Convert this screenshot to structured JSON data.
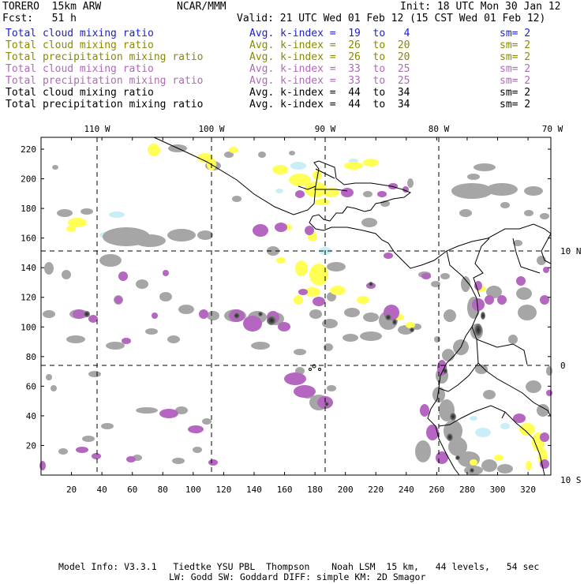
{
  "header": {
    "model": "TORERO  15km ARW",
    "center": "NCAR/MMM",
    "init": "Init: 18 UTC Mon 30 Jan 12",
    "fcst": "Fcst:   51 h",
    "valid": "Valid: 21 UTC Wed 01 Feb 12 (15 CST Wed 01 Feb 12)"
  },
  "legend": [
    {
      "field": "Total cloud mixing ratio",
      "index": "Avg. k-index =  19  to   4",
      "sm": "sm= 2",
      "color": "#1f22c8"
    },
    {
      "field": "Total cloud mixing ratio",
      "index": "Avg. k-index =  26  to  20",
      "sm": "sm= 2",
      "color": "#8a8a00"
    },
    {
      "field": "Total precipitation mixing ratio",
      "index": "Avg. k-index =  26  to  20",
      "sm": "sm= 2",
      "color": "#8a8a00"
    },
    {
      "field": "Total cloud mixing ratio",
      "index": "Avg. k-index =  33  to  25",
      "sm": "sm= 2",
      "color": "#b06ab8"
    },
    {
      "field": "Total precipitation mixing ratio",
      "index": "Avg. k-index =  33  to  25",
      "sm": "sm= 2",
      "color": "#b06ab8"
    },
    {
      "field": "Total cloud mixing ratio",
      "index": "Avg. k-index =  44  to  34",
      "sm": "sm= 2",
      "color": "#000000"
    },
    {
      "field": "Total precipitation mixing ratio",
      "index": "Avg. k-index =  44  to  34",
      "sm": "sm= 2",
      "color": "#000000"
    }
  ],
  "map": {
    "lon_labels": [
      "110 W",
      "100 W",
      "90 W",
      "80 W",
      "70 W"
    ],
    "lat_labels": [
      "10 N",
      "0",
      "10 S"
    ],
    "y_ticks": [
      "20",
      "40",
      "60",
      "80",
      "100",
      "120",
      "140",
      "160",
      "180",
      "200",
      "220"
    ],
    "x_ticks": [
      "20",
      "40",
      "60",
      "80",
      "100",
      "120",
      "140",
      "160",
      "180",
      "200",
      "220",
      "240",
      "260",
      "280",
      "300",
      "320"
    ],
    "colors": {
      "gray": "#a6a6a6",
      "dark_gray": "#555555",
      "yellow": "#ffff55",
      "purple": "#b466c0",
      "light_blue": "#c8eef8"
    }
  },
  "footer": {
    "line1": "Model Info: V3.3.1   Tiedtke YSU PBL  Thompson    Noah LSM  15 km,   44 levels,   54 sec",
    "line2": "LW: Godd SW: Goddard DIFF: simple KM: 2D Smagor"
  }
}
